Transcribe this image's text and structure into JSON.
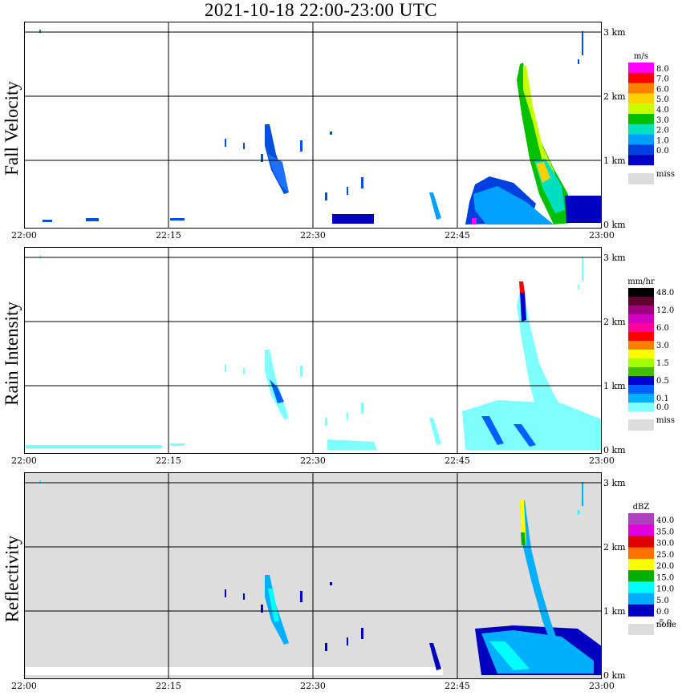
{
  "title": "2021-10-18   22:00-23:00 UTC",
  "x_ticks": [
    "22:00",
    "22:15",
    "22:30",
    "22:45",
    "23:00"
  ],
  "y_ticks": [
    "0 km",
    "1 km",
    "2 km",
    "3 km"
  ],
  "panels": [
    {
      "id": "fall-velocity",
      "ylabel": "Fall Velocity",
      "background": "#ffffff",
      "colorbar": {
        "title": "m/s",
        "labels": [
          "8.0",
          "7.0",
          "6.0",
          "5.0",
          "4.0",
          "3.0",
          "2.0",
          "1.0",
          "0.0"
        ],
        "colors": [
          "#ff00ff",
          "#ff0000",
          "#ff8000",
          "#ffd000",
          "#c8ff00",
          "#00c000",
          "#00e0c0",
          "#00a0ff",
          "#0040e0",
          "#0000c0"
        ],
        "missing_label": "miss",
        "missing_color": "#dddddd"
      }
    },
    {
      "id": "rain-intensity",
      "ylabel": "Rain Intensity",
      "background": "#ffffff",
      "colorbar": {
        "title": "mm/hr",
        "labels": [
          "48.0",
          "",
          "12.0",
          "",
          "6.0",
          "",
          "3.0",
          "",
          "1.5",
          "",
          "0.5",
          "",
          "0.1",
          "0.0"
        ],
        "colors": [
          "#000000",
          "#600030",
          "#a00080",
          "#d000c0",
          "#ff00a0",
          "#ff0000",
          "#ff8000",
          "#ffff00",
          "#a0ff00",
          "#40c000",
          "#0000d0",
          "#0060ff",
          "#00b0ff",
          "#80ffff"
        ],
        "missing_label": "miss",
        "missing_color": "#dddddd"
      }
    },
    {
      "id": "reflectivity",
      "ylabel": "Reflectivity",
      "background": "#dddddd",
      "colorbar": {
        "title": "dBZ",
        "labels": [
          "40.0",
          "35.0",
          "30.0",
          "25.0",
          "20.0",
          "15.0",
          "10.0",
          "5.0",
          "0.0",
          "-5.0"
        ],
        "colors": [
          "#b040c0",
          "#e000e0",
          "#e00000",
          "#ff7000",
          "#ffff00",
          "#00b000",
          "#00ffff",
          "#00b0ff",
          "#0000c0"
        ],
        "missing_label": "none",
        "missing_color": "#dddddd"
      }
    }
  ],
  "chart_data": [
    {
      "type": "heatmap",
      "title": "2021-10-18   22:00-23:00 UTC",
      "ylabel": "Fall Velocity",
      "units": "m/s",
      "x_range": [
        "22:00",
        "23:00"
      ],
      "ylim_km": [
        0,
        3
      ],
      "features": [
        {
          "time_start": "22:21",
          "time_end": "22:26",
          "height_km_min": 0.5,
          "height_km_max": 1.5,
          "value_class": "1.0-2.0"
        },
        {
          "time_start": "22:30",
          "time_end": "22:33",
          "height_km_min": 0.0,
          "height_km_max": 0.15,
          "value_class": "0.0-1.0"
        },
        {
          "time_start": "22:45",
          "time_end": "22:53",
          "height_km_min": 0.0,
          "height_km_max": 0.8,
          "value_class": "1.0-2.0"
        },
        {
          "time_start": "22:51",
          "time_end": "22:56",
          "height_km_min": 0.5,
          "height_km_max": 2.7,
          "value_class": "4.0-5.0"
        },
        {
          "time_start": "22:55",
          "time_end": "23:00",
          "height_km_min": 0.0,
          "height_km_max": 0.4,
          "value_class": "0.0-1.0"
        }
      ]
    },
    {
      "type": "heatmap",
      "ylabel": "Rain Intensity",
      "units": "mm/hr",
      "x_range": [
        "22:00",
        "23:00"
      ],
      "ylim_km": [
        0,
        3
      ],
      "features": [
        {
          "time_start": "22:25",
          "time_end": "22:28",
          "height_km_min": 0.4,
          "height_km_max": 1.5,
          "value_class": "0.1-0.5"
        },
        {
          "time_start": "22:45",
          "time_end": "23:00",
          "height_km_min": 0.0,
          "height_km_max": 0.8,
          "value_class": "0.0-0.1"
        },
        {
          "time_start": "22:51",
          "time_end": "22:52",
          "height_km_min": 2.4,
          "height_km_max": 2.7,
          "value_class": "3.0-12.0"
        }
      ]
    },
    {
      "type": "heatmap",
      "ylabel": "Reflectivity",
      "units": "dBZ",
      "x_range": [
        "22:00",
        "23:00"
      ],
      "ylim_km": [
        0,
        3
      ],
      "features": [
        {
          "time_start": "22:25",
          "time_end": "22:28",
          "height_km_min": 0.4,
          "height_km_max": 1.5,
          "value_class": "0.0-10.0"
        },
        {
          "time_start": "22:45",
          "time_end": "23:00",
          "height_km_min": 0.0,
          "height_km_max": 0.8,
          "value_class": "-5.0-10.0"
        },
        {
          "time_start": "22:51",
          "time_end": "22:52",
          "height_km_min": 2.0,
          "height_km_max": 2.7,
          "value_class": "15.0-20.0"
        }
      ]
    }
  ]
}
